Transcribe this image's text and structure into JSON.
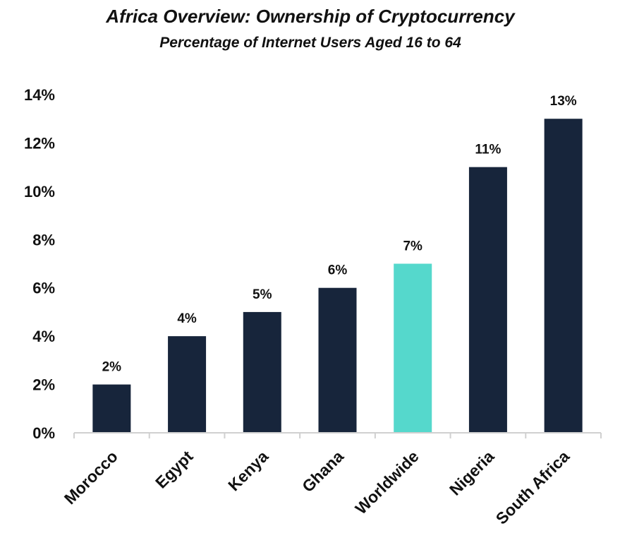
{
  "chart_data": {
    "type": "bar",
    "title": "Africa Overview: Ownership of Cryptocurrency",
    "subtitle": "Percentage of Internet Users Aged 16 to 64",
    "xlabel": "",
    "ylabel": "",
    "ylim": [
      0,
      14
    ],
    "y_ticks": [
      0,
      2,
      4,
      6,
      8,
      10,
      12,
      14
    ],
    "y_tick_labels": [
      "0%",
      "2%",
      "4%",
      "6%",
      "8%",
      "10%",
      "12%",
      "14%"
    ],
    "grid": false,
    "legend": "none",
    "categories": [
      "Morocco",
      "Egypt",
      "Kenya",
      "Ghana",
      "Worldwide",
      "Nigeria",
      "South Africa"
    ],
    "values": [
      2,
      4,
      5,
      6,
      7,
      11,
      13
    ],
    "data_labels": [
      "2%",
      "4%",
      "5%",
      "6%",
      "7%",
      "11%",
      "13%"
    ],
    "highlight_category": "Worldwide"
  },
  "colors": {
    "bar": "#17253b",
    "highlight": "#55d8cc",
    "axis": "#d0d0d0",
    "text": "#111111"
  }
}
